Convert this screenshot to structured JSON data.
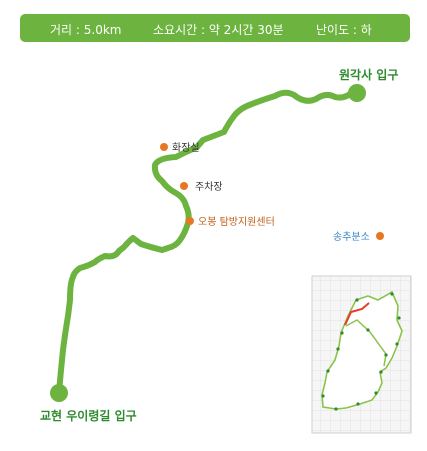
{
  "info": {
    "distance": "거리 : 5.0km",
    "duration": "소요시간 : 약 2시간 30분",
    "difficulty": "난이도 : 하"
  },
  "route": {
    "start_label": "원각사 입구",
    "end_label": "교현 우이령길 입구"
  },
  "pois": [
    {
      "label": "화장실"
    },
    {
      "label": "주차장"
    },
    {
      "label": "오봉 탐방지원센터"
    },
    {
      "label": "송추분소"
    }
  ],
  "colors": {
    "route": "#6db33f",
    "endpoint_text": "#2e8b2e",
    "poi_dot": "#e87722",
    "poi_text": "#333333",
    "center_text": "#c06018",
    "office_text": "#3a86c8",
    "inset_highlight": "#e63b2e"
  }
}
